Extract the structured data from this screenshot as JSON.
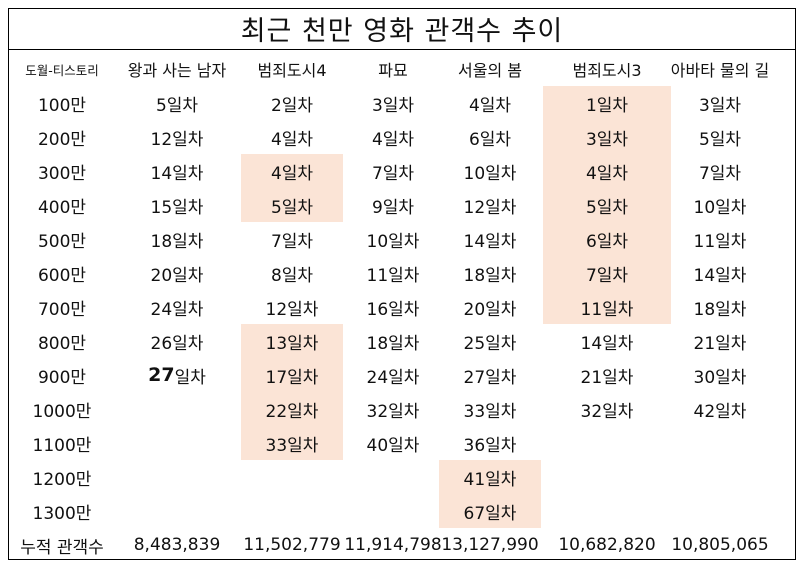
{
  "chart_data": {
    "type": "table",
    "title": "최근 천만 영화 관객수 추이",
    "credit": "도월-티스토리",
    "columns": [
      "왕과 사는 남자",
      "범죄도시4",
      "파묘",
      "서울의 봄",
      "범죄도시3",
      "아바타 물의 길"
    ],
    "row_labels": [
      "100만",
      "200만",
      "300만",
      "400만",
      "500만",
      "600만",
      "700만",
      "800만",
      "900만",
      "1000만",
      "1100만",
      "1200만",
      "1300만"
    ],
    "cells": [
      [
        "5일차",
        "12일차",
        "14일차",
        "15일차",
        "18일차",
        "20일차",
        "24일차",
        "26일차",
        "27일차",
        "",
        "",
        "",
        ""
      ],
      [
        "2일차",
        "4일차",
        "4일차",
        "5일차",
        "7일차",
        "8일차",
        "12일차",
        "13일차",
        "17일차",
        "22일차",
        "33일차",
        "",
        ""
      ],
      [
        "3일차",
        "4일차",
        "7일차",
        "9일차",
        "10일차",
        "11일차",
        "16일차",
        "18일차",
        "24일차",
        "32일차",
        "40일차",
        "",
        ""
      ],
      [
        "4일차",
        "6일차",
        "10일차",
        "12일차",
        "14일차",
        "18일차",
        "20일차",
        "25일차",
        "27일차",
        "33일차",
        "36일차",
        "41일차",
        "67일차"
      ],
      [
        "1일차",
        "3일차",
        "4일차",
        "5일차",
        "6일차",
        "7일차",
        "11일차",
        "14일차",
        "21일차",
        "32일차",
        "",
        "",
        ""
      ],
      [
        "3일차",
        "5일차",
        "7일차",
        "10일차",
        "11일차",
        "14일차",
        "18일차",
        "21일차",
        "30일차",
        "42일차",
        "",
        "",
        ""
      ]
    ],
    "highlighted_rows": [
      [],
      [
        2,
        3,
        7,
        8,
        9,
        10
      ],
      [],
      [
        11,
        12
      ],
      [
        0,
        1,
        2,
        3,
        4,
        5,
        6
      ],
      []
    ],
    "bold_cell": {
      "column": 0,
      "row": 8,
      "number": "27",
      "unit": "일차"
    },
    "highlight_color": "#fbe4d6",
    "total_label": "누적 관객수",
    "totals": [
      "8,483,839",
      "11,502,779",
      "11,914,798",
      "13,127,990",
      "10,682,820",
      "10,805,065"
    ]
  }
}
